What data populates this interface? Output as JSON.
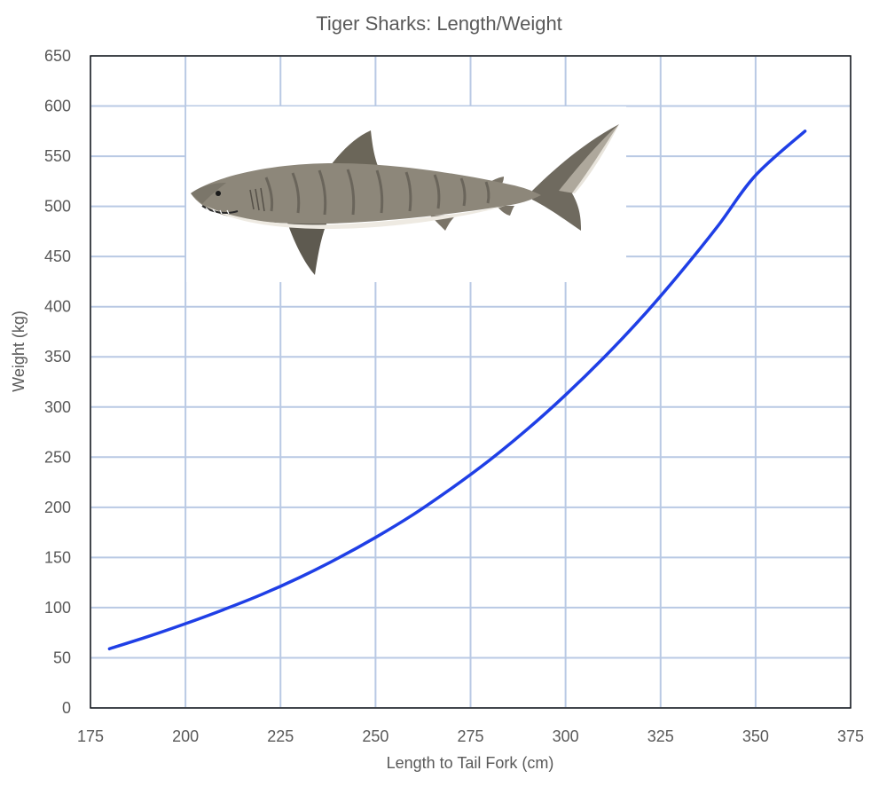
{
  "chart_data": {
    "type": "line",
    "title": "Tiger Sharks: Length/Weight",
    "xlabel": "Length to Tail Fork (cm)",
    "ylabel": "Weight (kg)",
    "xlim": [
      175,
      375
    ],
    "ylim": [
      0,
      650
    ],
    "x_ticks": [
      175,
      200,
      225,
      250,
      275,
      300,
      325,
      350,
      375
    ],
    "y_ticks": [
      0,
      50,
      100,
      150,
      200,
      250,
      300,
      350,
      400,
      450,
      500,
      550,
      600,
      650
    ],
    "grid": true,
    "legend": "none",
    "series": [
      {
        "color": "#1f3fe6",
        "x": [
          180,
          190,
          200,
          210,
          220,
          230,
          240,
          250,
          260,
          270,
          280,
          290,
          300,
          310,
          320,
          330,
          340,
          350,
          363
        ],
        "y": [
          59,
          71,
          84,
          98,
          113,
          130,
          149,
          170,
          193,
          219,
          247,
          278,
          312,
          349,
          389,
          433,
          480,
          531,
          575
        ]
      }
    ],
    "image": {
      "subject": "tiger shark illustration"
    }
  }
}
